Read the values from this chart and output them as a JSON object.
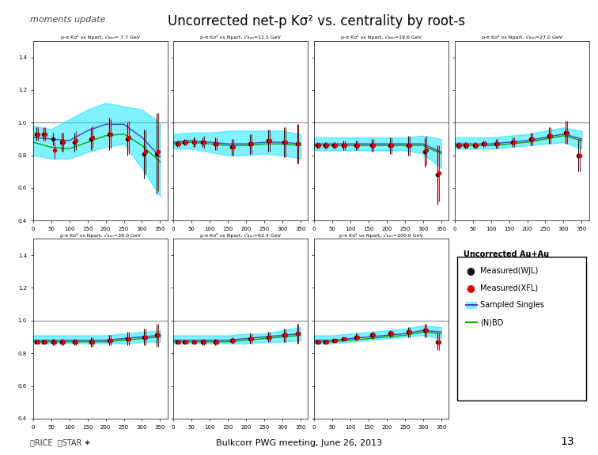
{
  "title_left": "moments update",
  "title_main": "Uncorrected net-p Kσ² vs. centrality by root-s",
  "footer": "Bulkcorr PWG meeting, June 26, 2013",
  "page_number": "13",
  "background_color": "#ffffff",
  "subplot_titles": [
    "p-π Kσ² vs Npart, √sₙₙ= 7.7 GeV",
    "p-π Kσ² vs Npart, √sₙₙ=11.5 GeV",
    "p-π Kσ² vs Npart, √sₙₙ=19.6 GeV",
    "p-π Kσ² vs Npart, √sₙₙ=27.0 GeV",
    "p-π Kσ² vs Npart, √sₙₙ=39.0 GeV",
    "p-π Kσ² vs Npart, √sₙₙ=62.4 GeV",
    "p-π Kσ² vs Npart, √sₙₙ=200.0 GeV"
  ],
  "ylim": [
    0.4,
    1.5
  ],
  "xlim": [
    0,
    370
  ],
  "xticks": [
    0,
    50,
    100,
    150,
    200,
    250,
    300,
    350
  ],
  "yticks": [
    0.4,
    0.6,
    0.8,
    1.0,
    1.2,
    1.4
  ],
  "hline_y": 1.0,
  "hline_color": "#888888",
  "band_color": "#00e5ff",
  "band_alpha": 0.5,
  "line_blue_color": "#4444cc",
  "line_green_color": "#00aa00",
  "wjl_color": "#111111",
  "xfl_color": "#dd0000",
  "panels": [
    {
      "npart_wjl": [
        10,
        30,
        55,
        80,
        115,
        160,
        210,
        260,
        305,
        340
      ],
      "wjl": [
        0.93,
        0.93,
        0.9,
        0.88,
        0.88,
        0.9,
        0.93,
        0.9,
        0.81,
        0.81
      ],
      "wjl_err": [
        0.04,
        0.04,
        0.04,
        0.06,
        0.06,
        0.07,
        0.1,
        0.1,
        0.15,
        0.25
      ],
      "npart_xfl": [
        10,
        30,
        55,
        80,
        115,
        160,
        210,
        260,
        305,
        340
      ],
      "xfl": [
        0.93,
        0.93,
        0.83,
        0.88,
        0.89,
        0.91,
        0.93,
        0.91,
        0.82,
        0.82
      ],
      "xfl_err": [
        0.04,
        0.04,
        0.05,
        0.06,
        0.06,
        0.07,
        0.09,
        0.1,
        0.14,
        0.24
      ],
      "band_x": [
        0,
        50,
        100,
        150,
        200,
        250,
        300,
        350
      ],
      "band_low": [
        0.8,
        0.78,
        0.78,
        0.82,
        0.85,
        0.87,
        0.72,
        0.55
      ],
      "band_high": [
        0.98,
        0.96,
        1.02,
        1.08,
        1.12,
        1.1,
        1.08,
        1.0
      ],
      "line_blue": [
        0.91,
        0.9,
        0.89,
        0.95,
        0.99,
        0.99,
        0.91,
        0.79
      ],
      "line_green": [
        0.88,
        0.85,
        0.84,
        0.88,
        0.92,
        0.93,
        0.86,
        0.76
      ]
    },
    {
      "npart_wjl": [
        10,
        30,
        55,
        80,
        115,
        160,
        210,
        260,
        305,
        340
      ],
      "wjl": [
        0.87,
        0.88,
        0.88,
        0.88,
        0.87,
        0.85,
        0.87,
        0.89,
        0.88,
        0.87
      ],
      "wjl_err": [
        0.02,
        0.02,
        0.03,
        0.03,
        0.04,
        0.05,
        0.06,
        0.07,
        0.09,
        0.12
      ],
      "npart_xfl": [
        10,
        30,
        55,
        80,
        115,
        160,
        210,
        260,
        305,
        340
      ],
      "xfl": [
        0.87,
        0.88,
        0.88,
        0.88,
        0.87,
        0.85,
        0.87,
        0.89,
        0.88,
        0.87
      ],
      "xfl_err": [
        0.02,
        0.02,
        0.03,
        0.04,
        0.04,
        0.05,
        0.06,
        0.07,
        0.09,
        0.12
      ],
      "band_x": [
        0,
        50,
        100,
        150,
        200,
        250,
        300,
        350
      ],
      "band_low": [
        0.84,
        0.84,
        0.82,
        0.8,
        0.8,
        0.81,
        0.8,
        0.78
      ],
      "band_high": [
        0.93,
        0.94,
        0.94,
        0.95,
        0.95,
        0.95,
        0.95,
        0.93
      ],
      "line_blue": [
        0.88,
        0.89,
        0.88,
        0.87,
        0.87,
        0.88,
        0.88,
        0.87
      ],
      "line_green": [
        0.87,
        0.88,
        0.87,
        0.86,
        0.86,
        0.87,
        0.87,
        0.86
      ]
    },
    {
      "npart_wjl": [
        10,
        30,
        55,
        80,
        115,
        160,
        210,
        260,
        305,
        340
      ],
      "wjl": [
        0.86,
        0.86,
        0.86,
        0.86,
        0.86,
        0.86,
        0.86,
        0.86,
        0.82,
        0.68
      ],
      "wjl_err": [
        0.02,
        0.02,
        0.02,
        0.03,
        0.03,
        0.04,
        0.05,
        0.06,
        0.09,
        0.18
      ],
      "npart_xfl": [
        10,
        30,
        55,
        80,
        115,
        160,
        210,
        260,
        305,
        340
      ],
      "xfl": [
        0.86,
        0.86,
        0.86,
        0.86,
        0.86,
        0.86,
        0.86,
        0.86,
        0.83,
        0.69
      ],
      "xfl_err": [
        0.02,
        0.02,
        0.02,
        0.03,
        0.03,
        0.04,
        0.05,
        0.06,
        0.09,
        0.17
      ],
      "band_x": [
        0,
        50,
        100,
        150,
        200,
        250,
        300,
        350
      ],
      "band_low": [
        0.83,
        0.83,
        0.83,
        0.83,
        0.83,
        0.83,
        0.81,
        0.72
      ],
      "band_high": [
        0.91,
        0.91,
        0.91,
        0.91,
        0.91,
        0.91,
        0.92,
        0.9
      ],
      "line_blue": [
        0.87,
        0.87,
        0.87,
        0.87,
        0.87,
        0.87,
        0.87,
        0.82
      ],
      "line_green": [
        0.86,
        0.86,
        0.86,
        0.86,
        0.86,
        0.86,
        0.86,
        0.81
      ]
    },
    {
      "npart_wjl": [
        10,
        30,
        55,
        80,
        115,
        160,
        210,
        260,
        305,
        340
      ],
      "wjl": [
        0.86,
        0.86,
        0.86,
        0.87,
        0.87,
        0.88,
        0.9,
        0.92,
        0.94,
        0.8
      ],
      "wjl_err": [
        0.02,
        0.02,
        0.02,
        0.02,
        0.03,
        0.03,
        0.04,
        0.05,
        0.07,
        0.1
      ],
      "npart_xfl": [
        10,
        30,
        55,
        80,
        115,
        160,
        210,
        260,
        305,
        340
      ],
      "xfl": [
        0.86,
        0.86,
        0.86,
        0.87,
        0.87,
        0.88,
        0.9,
        0.92,
        0.94,
        0.8
      ],
      "xfl_err": [
        0.02,
        0.02,
        0.02,
        0.02,
        0.03,
        0.03,
        0.04,
        0.05,
        0.07,
        0.1
      ],
      "band_x": [
        0,
        50,
        100,
        150,
        200,
        250,
        300,
        350
      ],
      "band_low": [
        0.84,
        0.84,
        0.84,
        0.85,
        0.86,
        0.87,
        0.88,
        0.84
      ],
      "band_high": [
        0.91,
        0.91,
        0.91,
        0.92,
        0.93,
        0.95,
        0.97,
        0.95
      ],
      "line_blue": [
        0.87,
        0.87,
        0.87,
        0.88,
        0.89,
        0.91,
        0.93,
        0.9
      ],
      "line_green": [
        0.86,
        0.86,
        0.86,
        0.87,
        0.88,
        0.9,
        0.92,
        0.89
      ]
    },
    {
      "npart_wjl": [
        10,
        30,
        55,
        80,
        115,
        160,
        210,
        260,
        305,
        340
      ],
      "wjl": [
        0.87,
        0.87,
        0.87,
        0.87,
        0.87,
        0.87,
        0.88,
        0.89,
        0.9,
        0.91
      ],
      "wjl_err": [
        0.01,
        0.01,
        0.02,
        0.02,
        0.02,
        0.03,
        0.03,
        0.04,
        0.05,
        0.07
      ],
      "npart_xfl": [
        10,
        30,
        55,
        80,
        115,
        160,
        210,
        260,
        305,
        340
      ],
      "xfl": [
        0.87,
        0.87,
        0.87,
        0.87,
        0.87,
        0.87,
        0.88,
        0.89,
        0.9,
        0.91
      ],
      "xfl_err": [
        0.01,
        0.01,
        0.02,
        0.02,
        0.02,
        0.03,
        0.03,
        0.04,
        0.05,
        0.07
      ],
      "band_x": [
        0,
        50,
        100,
        150,
        200,
        250,
        300,
        350
      ],
      "band_low": [
        0.86,
        0.86,
        0.86,
        0.86,
        0.86,
        0.86,
        0.87,
        0.87
      ],
      "band_high": [
        0.91,
        0.91,
        0.91,
        0.91,
        0.91,
        0.92,
        0.93,
        0.94
      ],
      "line_blue": [
        0.88,
        0.88,
        0.88,
        0.88,
        0.88,
        0.89,
        0.9,
        0.91
      ],
      "line_green": [
        0.87,
        0.87,
        0.87,
        0.87,
        0.87,
        0.88,
        0.89,
        0.9
      ]
    },
    {
      "npart_wjl": [
        10,
        30,
        55,
        80,
        115,
        160,
        210,
        260,
        305,
        340
      ],
      "wjl": [
        0.87,
        0.87,
        0.87,
        0.87,
        0.87,
        0.88,
        0.89,
        0.9,
        0.91,
        0.92
      ],
      "wjl_err": [
        0.01,
        0.01,
        0.01,
        0.02,
        0.02,
        0.02,
        0.03,
        0.03,
        0.04,
        0.06
      ],
      "npart_xfl": [
        10,
        30,
        55,
        80,
        115,
        160,
        210,
        260,
        305,
        340
      ],
      "xfl": [
        0.87,
        0.87,
        0.87,
        0.87,
        0.87,
        0.88,
        0.89,
        0.9,
        0.91,
        0.92
      ],
      "xfl_err": [
        0.01,
        0.01,
        0.01,
        0.02,
        0.02,
        0.02,
        0.03,
        0.03,
        0.04,
        0.06
      ],
      "band_x": [
        0,
        50,
        100,
        150,
        200,
        250,
        300,
        350
      ],
      "band_low": [
        0.86,
        0.86,
        0.86,
        0.86,
        0.86,
        0.87,
        0.87,
        0.88
      ],
      "band_high": [
        0.91,
        0.91,
        0.91,
        0.91,
        0.92,
        0.92,
        0.94,
        0.96
      ],
      "line_blue": [
        0.88,
        0.88,
        0.88,
        0.88,
        0.89,
        0.9,
        0.91,
        0.92
      ],
      "line_green": [
        0.87,
        0.87,
        0.87,
        0.87,
        0.88,
        0.89,
        0.9,
        0.91
      ]
    },
    {
      "npart_wjl": [
        10,
        30,
        55,
        80,
        115,
        160,
        210,
        260,
        305,
        340
      ],
      "wjl": [
        0.87,
        0.87,
        0.88,
        0.89,
        0.9,
        0.91,
        0.92,
        0.93,
        0.94,
        0.87
      ],
      "wjl_err": [
        0.01,
        0.01,
        0.01,
        0.01,
        0.02,
        0.02,
        0.02,
        0.03,
        0.04,
        0.05
      ],
      "npart_xfl": [
        10,
        30,
        55,
        80,
        115,
        160,
        210,
        260,
        305,
        340
      ],
      "xfl": [
        0.87,
        0.87,
        0.88,
        0.89,
        0.9,
        0.91,
        0.92,
        0.93,
        0.94,
        0.87
      ],
      "xfl_err": [
        0.01,
        0.01,
        0.01,
        0.01,
        0.02,
        0.02,
        0.02,
        0.03,
        0.04,
        0.05
      ],
      "band_x": [
        0,
        50,
        100,
        150,
        200,
        250,
        300,
        350
      ],
      "band_low": [
        0.86,
        0.86,
        0.87,
        0.88,
        0.89,
        0.9,
        0.91,
        0.89
      ],
      "band_high": [
        0.91,
        0.91,
        0.92,
        0.93,
        0.94,
        0.95,
        0.97,
        0.96
      ],
      "line_blue": [
        0.88,
        0.88,
        0.89,
        0.9,
        0.91,
        0.92,
        0.94,
        0.93
      ],
      "line_green": [
        0.87,
        0.87,
        0.88,
        0.89,
        0.9,
        0.91,
        0.93,
        0.92
      ]
    }
  ],
  "legend_title": "Uncorrected Au+Au",
  "legend_entries": [
    "Measured(WJL)",
    "Measured(XFL)",
    "Sampled Singles",
    "(N)BD"
  ]
}
